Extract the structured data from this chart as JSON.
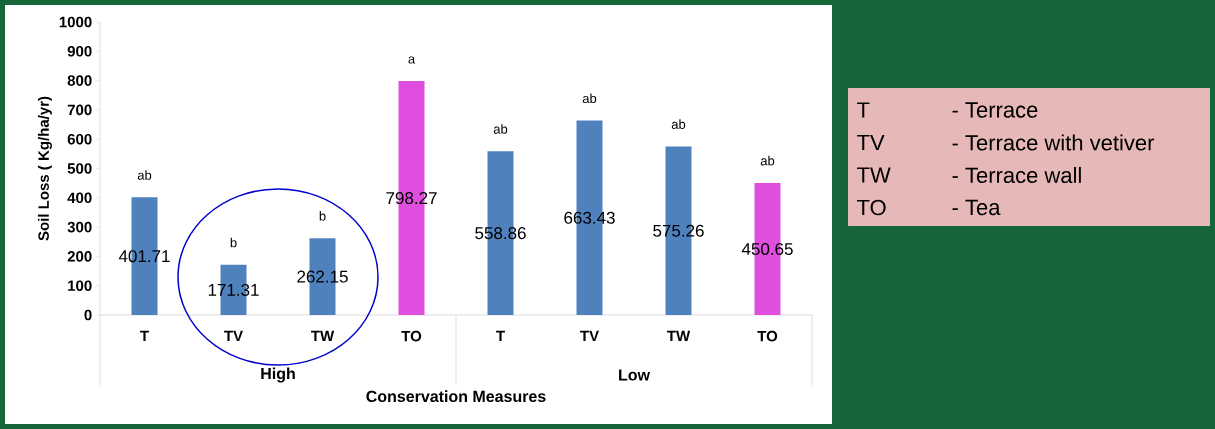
{
  "chart_data": {
    "type": "bar",
    "xlabel": "Conservation Measures",
    "ylabel": "Soil Loss ( Kg/ha/yr)",
    "categories": [
      "T",
      "TV",
      "TW",
      "TO",
      "T",
      "TV",
      "TW",
      "TO"
    ],
    "values": [
      401.71,
      171.31,
      262.15,
      798.27,
      558.86,
      663.43,
      575.26,
      450.65
    ],
    "colors": [
      "#4f81bd",
      "#4f81bd",
      "#4f81bd",
      "#e04ee0",
      "#4f81bd",
      "#4f81bd",
      "#4f81bd",
      "#e04ee0"
    ],
    "data_labels": true,
    "ylim": [
      0,
      1000
    ],
    "yticks": [
      0,
      100,
      200,
      300,
      400,
      500,
      600,
      700,
      800,
      900,
      1000
    ],
    "grid": false,
    "annotations": [
      "ab",
      "b",
      "b",
      "a",
      "ab",
      "ab",
      "ab",
      "ab",
      "High",
      "Low",
      "T",
      "- Terrace",
      "TV",
      "- Terrace with vetiver",
      "TW",
      "- Terrace wall",
      "TO",
      "- Tea"
    ]
  }
}
